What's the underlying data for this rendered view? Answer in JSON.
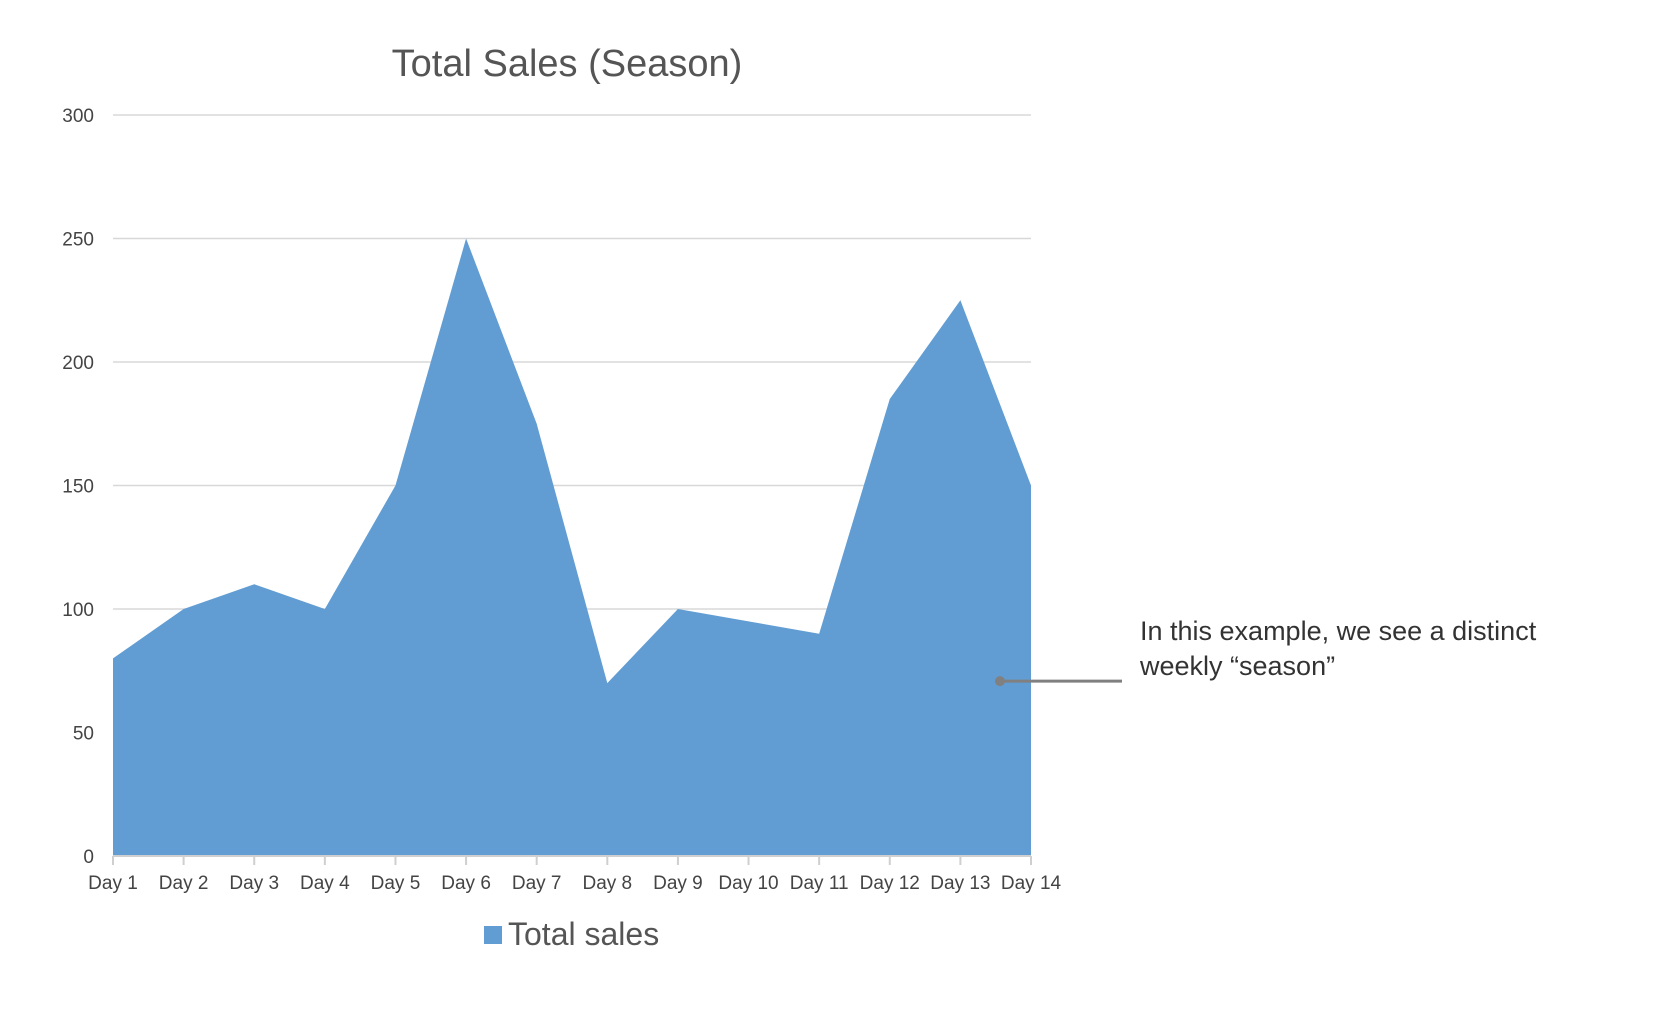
{
  "chart_data": {
    "type": "area",
    "title": "Total Sales (Season)",
    "categories": [
      "Day 1",
      "Day 2",
      "Day 3",
      "Day 4",
      "Day 5",
      "Day 6",
      "Day 7",
      "Day 8",
      "Day 9",
      "Day 10",
      "Day 11",
      "Day 12",
      "Day 13",
      "Day 14"
    ],
    "series": [
      {
        "name": "Total sales",
        "values": [
          80,
          100,
          110,
          100,
          150,
          250,
          175,
          70,
          100,
          95,
          90,
          185,
          225,
          150
        ],
        "color": "#619dd3"
      }
    ],
    "ylim": [
      0,
      300
    ],
    "yticks": [
      0,
      50,
      100,
      150,
      200,
      250,
      300
    ],
    "grid": true,
    "legend": "bottom-center",
    "xlabel": "",
    "ylabel": ""
  },
  "annotation": {
    "lines": [
      "In this example, we see a distinct",
      "weekly “season”"
    ],
    "point_day": "Day 14",
    "point_value": 70
  }
}
